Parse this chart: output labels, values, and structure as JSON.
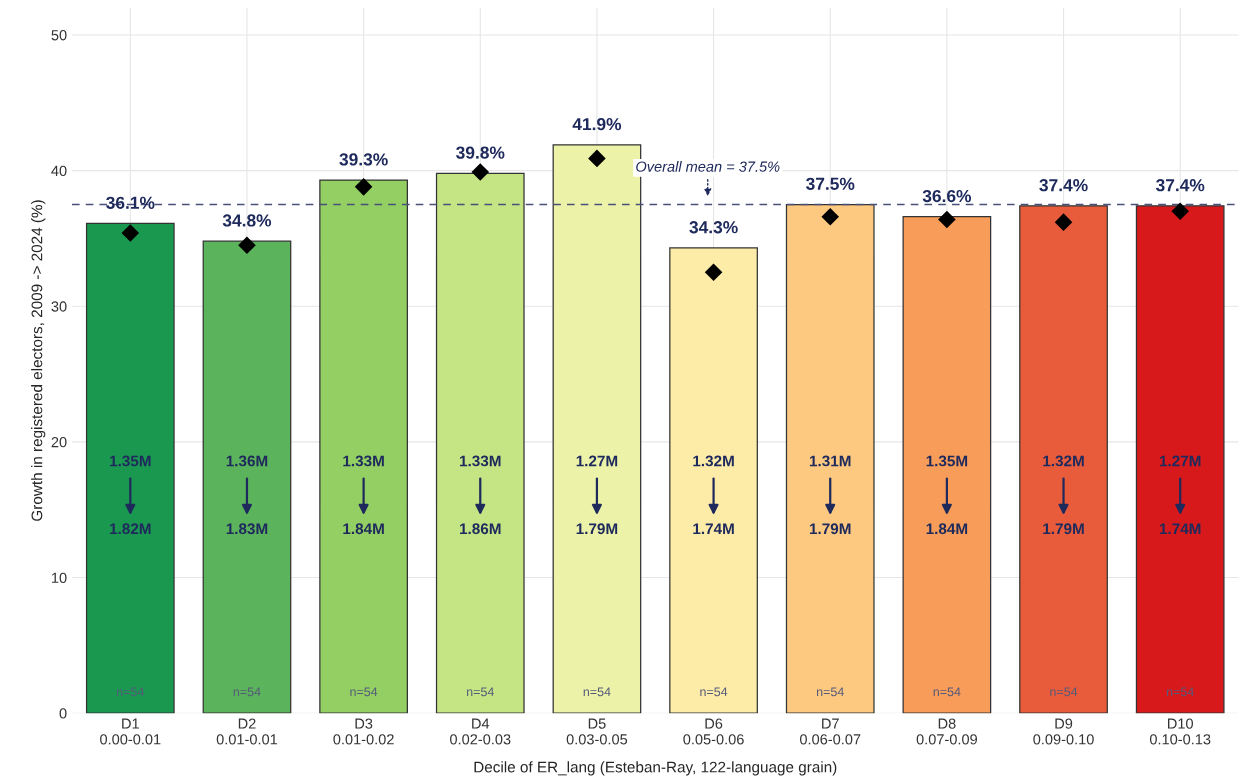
{
  "chart_data": {
    "type": "bar",
    "xlabel": "Decile of ER_lang (Esteban-Ray, 122-language grain)",
    "ylabel": "Growth in registered electors, 2009 -> 2024 (%)",
    "categories": [
      "D1\n0.00-0.01",
      "D2\n0.01-0.01",
      "D3\n0.01-0.02",
      "D4\n0.02-0.03",
      "D5\n0.03-0.05",
      "D6\n0.05-0.06",
      "D7\n0.06-0.07",
      "D8\n0.07-0.09",
      "D9\n0.09-0.10",
      "D10\n0.10-0.13"
    ],
    "series": [
      {
        "values": [
          36.1,
          34.8,
          39.3,
          39.8,
          41.9,
          34.3,
          37.5,
          36.6,
          37.4,
          37.4
        ],
        "colors": [
          "#1a9850",
          "#5bb35b",
          "#93cf63",
          "#c5e585",
          "#ecf3a8",
          "#fdeba8",
          "#fdc981",
          "#f79c59",
          "#e85c3b",
          "#d7191c"
        ],
        "value_labels": [
          "36.1%",
          "34.8%",
          "39.3%",
          "39.8%",
          "41.9%",
          "34.3%",
          "37.5%",
          "36.6%",
          "37.4%",
          "37.4%"
        ]
      },
      {
        "type": "scatter",
        "color": "#000000",
        "marker": "diamond",
        "values": [
          35.4,
          34.5,
          38.8,
          39.9,
          40.9,
          32.5,
          36.6,
          36.4,
          36.2,
          37.0
        ]
      }
    ],
    "ylim": [
      0,
      52
    ],
    "yticks": [
      0,
      10,
      20,
      30,
      40,
      50
    ],
    "grid": true,
    "ref_lines": [
      {
        "axis": "y",
        "value": 37.5,
        "label": "Overall mean = 37.5%",
        "color": "#4a4f7a",
        "line_style": "dashed"
      }
    ],
    "annotations": [
      "1.35M",
      "1.82M",
      "n=54",
      "1.36M",
      "1.83M",
      "n=54",
      "1.33M",
      "1.84M",
      "n=54",
      "1.33M",
      "1.86M",
      "n=54",
      "1.27M",
      "1.79M",
      "n=54",
      "1.32M",
      "1.74M",
      "n=54",
      "1.31M",
      "1.79M",
      "n=54",
      "1.35M",
      "1.84M",
      "n=54",
      "1.32M",
      "1.79M",
      "n=54",
      "1.27M",
      "1.74M",
      "n=54"
    ]
  }
}
